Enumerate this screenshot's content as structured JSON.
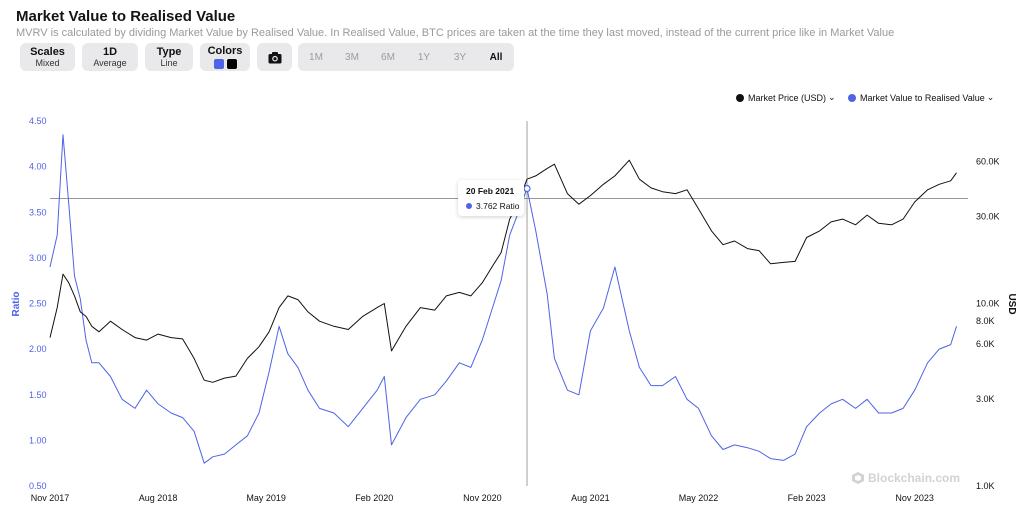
{
  "header": {
    "title": "Market Value to Realised Value",
    "subtitle": "MVRV is calculated by dividing Market Value by Realised Value. In Realised Value, BTC prices are taken at the time they last moved, instead of the current price like in Market Value"
  },
  "controls": {
    "scales": {
      "label": "Scales",
      "value": "Mixed"
    },
    "interval": {
      "label": "1D",
      "value": "Average"
    },
    "type": {
      "label": "Type",
      "value": "Line"
    },
    "colors": {
      "label": "Colors",
      "series_color": "#4f63e6",
      "price_color": "#000000"
    },
    "camera": {
      "icon": "camera-icon"
    },
    "ranges": [
      "1M",
      "3M",
      "6M",
      "1Y",
      "3Y",
      "All"
    ],
    "active_range": "All"
  },
  "legend": {
    "price_label": "Market Price (USD)",
    "ratio_label": "Market Value to Realised Value"
  },
  "tooltip": {
    "date": "20 Feb 2021",
    "value": "3.762 Ratio"
  },
  "watermark": "Blockchain.com",
  "chart_data": {
    "type": "line",
    "title": "Market Value to Realised Value",
    "x_tick_labels": [
      "Nov 2017",
      "Aug 2018",
      "May 2019",
      "Feb 2020",
      "Nov 2020",
      "Aug 2021",
      "May 2022",
      "Feb 2023",
      "Nov 2023"
    ],
    "x_tick_times": [
      2017.83,
      2018.58,
      2019.33,
      2020.08,
      2020.83,
      2021.58,
      2022.33,
      2023.08,
      2023.83
    ],
    "x_range": [
      2017.83,
      2024.2
    ],
    "left_axis": {
      "label": "Ratio",
      "ticks": [
        "4.50",
        "4.00",
        "3.50",
        "3.00",
        "2.50",
        "2.00",
        "1.50",
        "1.00",
        "0.50"
      ],
      "range": [
        0.5,
        4.5
      ],
      "scale": "linear",
      "color": "#4f63e6"
    },
    "right_axis": {
      "label": "USD",
      "ticks": [
        "60.0K",
        "30.0K",
        "10.0K",
        "8.0K",
        "6.0K",
        "3.0K",
        "1.0K"
      ],
      "tick_values": [
        60000,
        30000,
        10000,
        8000,
        6000,
        3000,
        1000
      ],
      "range": [
        1000,
        100000
      ],
      "scale": "log"
    },
    "grid": false,
    "legend_position": "top-right",
    "crosshair": {
      "x": 2021.14,
      "y_ratio": 3.65
    },
    "series": [
      {
        "name": "Market Value to Realised Value",
        "axis": "left",
        "color": "#4f63e6",
        "x": [
          2017.83,
          2017.88,
          2017.92,
          2017.96,
          2018.0,
          2018.04,
          2018.08,
          2018.12,
          2018.17,
          2018.25,
          2018.33,
          2018.42,
          2018.5,
          2018.58,
          2018.67,
          2018.75,
          2018.83,
          2018.9,
          2018.96,
          2019.04,
          2019.12,
          2019.2,
          2019.28,
          2019.35,
          2019.42,
          2019.48,
          2019.55,
          2019.62,
          2019.7,
          2019.8,
          2019.9,
          2020.0,
          2020.1,
          2020.15,
          2020.2,
          2020.3,
          2020.4,
          2020.5,
          2020.58,
          2020.67,
          2020.75,
          2020.83,
          2020.9,
          2020.96,
          2021.02,
          2021.08,
          2021.14,
          2021.2,
          2021.28,
          2021.33,
          2021.42,
          2021.5,
          2021.58,
          2021.67,
          2021.75,
          2021.85,
          2021.92,
          2022.0,
          2022.08,
          2022.17,
          2022.25,
          2022.33,
          2022.42,
          2022.5,
          2022.58,
          2022.67,
          2022.75,
          2022.83,
          2022.92,
          2023.0,
          2023.08,
          2023.17,
          2023.25,
          2023.33,
          2023.42,
          2023.5,
          2023.58,
          2023.67,
          2023.75,
          2023.83,
          2023.92,
          2024.0,
          2024.08,
          2024.12
        ],
        "values": [
          2.9,
          3.25,
          4.35,
          3.6,
          2.8,
          2.55,
          2.1,
          1.85,
          1.85,
          1.7,
          1.45,
          1.35,
          1.55,
          1.4,
          1.3,
          1.25,
          1.1,
          0.75,
          0.82,
          0.85,
          0.95,
          1.05,
          1.3,
          1.75,
          2.25,
          1.95,
          1.8,
          1.55,
          1.35,
          1.3,
          1.15,
          1.35,
          1.55,
          1.7,
          0.95,
          1.25,
          1.45,
          1.5,
          1.65,
          1.85,
          1.8,
          2.1,
          2.45,
          2.75,
          3.25,
          3.5,
          3.76,
          3.3,
          2.6,
          1.9,
          1.55,
          1.5,
          2.2,
          2.45,
          2.9,
          2.2,
          1.8,
          1.6,
          1.6,
          1.7,
          1.45,
          1.35,
          1.05,
          0.9,
          0.95,
          0.92,
          0.88,
          0.8,
          0.78,
          0.85,
          1.15,
          1.3,
          1.4,
          1.45,
          1.35,
          1.45,
          1.3,
          1.3,
          1.35,
          1.55,
          1.85,
          2.0,
          2.05,
          2.25
        ]
      },
      {
        "name": "Market Price (USD)",
        "axis": "right",
        "color": "#111111",
        "x": [
          2017.83,
          2017.88,
          2017.92,
          2017.96,
          2018.0,
          2018.04,
          2018.08,
          2018.12,
          2018.17,
          2018.25,
          2018.33,
          2018.42,
          2018.5,
          2018.58,
          2018.67,
          2018.75,
          2018.83,
          2018.9,
          2018.96,
          2019.04,
          2019.12,
          2019.2,
          2019.28,
          2019.35,
          2019.42,
          2019.48,
          2019.55,
          2019.62,
          2019.7,
          2019.8,
          2019.9,
          2020.0,
          2020.1,
          2020.15,
          2020.2,
          2020.3,
          2020.4,
          2020.5,
          2020.58,
          2020.67,
          2020.75,
          2020.83,
          2020.9,
          2020.96,
          2021.02,
          2021.08,
          2021.14,
          2021.2,
          2021.28,
          2021.33,
          2021.42,
          2021.5,
          2021.58,
          2021.67,
          2021.75,
          2021.85,
          2021.92,
          2022.0,
          2022.08,
          2022.17,
          2022.25,
          2022.33,
          2022.42,
          2022.5,
          2022.58,
          2022.67,
          2022.75,
          2022.83,
          2022.92,
          2023.0,
          2023.08,
          2023.17,
          2023.25,
          2023.33,
          2023.42,
          2023.5,
          2023.58,
          2023.67,
          2023.75,
          2023.83,
          2023.92,
          2024.0,
          2024.08,
          2024.12
        ],
        "values": [
          6500,
          9500,
          14500,
          13000,
          11000,
          9000,
          8500,
          7500,
          7000,
          8000,
          7200,
          6500,
          6300,
          6800,
          6500,
          6400,
          5000,
          3800,
          3700,
          3900,
          4000,
          5000,
          5800,
          7000,
          9500,
          11000,
          10500,
          9000,
          8000,
          7500,
          7200,
          8500,
          9500,
          10000,
          5500,
          7500,
          9500,
          9200,
          11000,
          11500,
          11000,
          13000,
          16000,
          19000,
          29000,
          36000,
          48000,
          50000,
          55000,
          58000,
          40000,
          35000,
          39000,
          45000,
          50000,
          61000,
          48000,
          43000,
          41000,
          40000,
          42000,
          33000,
          25000,
          21000,
          22000,
          20000,
          19500,
          16500,
          16800,
          17000,
          23000,
          25000,
          28000,
          29000,
          27000,
          30500,
          27500,
          27000,
          29000,
          36000,
          42000,
          45000,
          47000,
          52000
        ]
      }
    ]
  }
}
